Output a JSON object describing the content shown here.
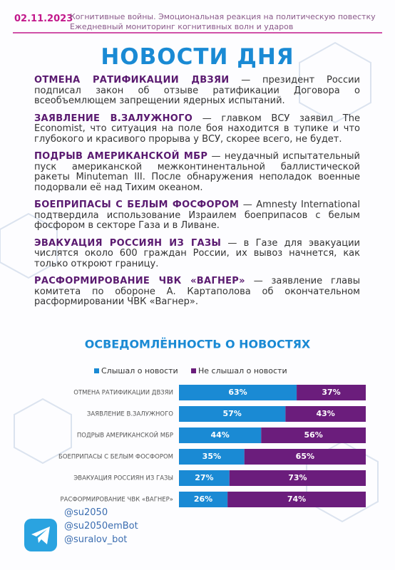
{
  "header": {
    "date": "02.11.2023",
    "subtitle_lines": [
      "Когнитивные войны. Эмоциональная реакция на политическую повестку",
      "Ежедневный мониторинг когнитивных волн и ударов"
    ]
  },
  "title": "НОВОСТИ ДНЯ",
  "news": [
    {
      "headline": "ОТМЕНА РАТИФИКАЦИИ ДВЗЯИ",
      "text": "— президент России подписал закон об отзыве ратификации Договора о всеобъемлющем запрещении ядерных испытаний."
    },
    {
      "headline": "ЗАЯВЛЕНИЕ В.ЗАЛУЖНОГО",
      "text": "— главком ВСУ заявил The Economist, что ситуация на поле боя находится в тупике и что глубокого и красивого прорыва у ВСУ, скорее всего, не будет."
    },
    {
      "headline": "ПОДРЫВ АМЕРИКАНСКОЙ МБР",
      "text": "— неудачный испытательный пуск американской межконтинентальной баллистической ракеты Minuteman III. После обнаружения неполадок военные подорвали её над Тихим океаном."
    },
    {
      "headline": "БОЕПРИПАСЫ С БЕЛЫМ ФОСФОРОМ",
      "text": "— Amnesty International подтвердила использование Израилем боеприпасов с белым фосфором в секторе Газа и в Ливане."
    },
    {
      "headline": "ЭВАКУАЦИЯ РОССИЯН ИЗ ГАЗЫ",
      "text": "— в Газе для эвакуации числятся около 600 граждан России, их вывоз начнется, как только откроют границу."
    },
    {
      "headline": "РАСФОРМИРОВАНИЕ ЧВК «ВАГНЕР»",
      "text": "— заявление главы комитета по обороне А. Картаполова об окончательном расформировании ЧВК «Вагнер»."
    }
  ],
  "chart_data": {
    "type": "stacked-bar",
    "orientation": "horizontal",
    "title": "ОСВЕДОМЛЁННОСТЬ О НОВОСТЯХ",
    "categories": [
      "ОТМЕНА РАТИФИКАЦИИ ДВЗЯИ",
      "ЗАЯВЛЕНИЕ В.ЗАЛУЖНОГО",
      "ПОДРЫВ АМЕРИКАНСКОЙ МБР",
      "БОЕПРИПАСЫ С БЕЛЫМ ФОСФОРОМ",
      "ЭВАКУАЦИЯ РОССИЯН ИЗ ГАЗЫ",
      "РАСФОРМИРОВАНИЕ ЧВК «ВАГНЕР»"
    ],
    "xlim": [
      0,
      100
    ],
    "series": [
      {
        "name": "Слышал о новости",
        "color": "#1a8ad4",
        "values": [
          63,
          57,
          44,
          35,
          27,
          26
        ],
        "value_labels": [
          "63%",
          "57%",
          "44%",
          "35%",
          "27%",
          "26%"
        ]
      },
      {
        "name": "Не слышал о новости",
        "color": "#6b1d7c",
        "values": [
          37,
          43,
          56,
          65,
          73,
          74
        ],
        "value_labels": [
          "37%",
          "43%",
          "56%",
          "65%",
          "73%",
          "74%"
        ]
      }
    ]
  },
  "footer": {
    "handles": [
      "@su2050",
      "@su2050emBot",
      "@suralov_bot"
    ]
  }
}
